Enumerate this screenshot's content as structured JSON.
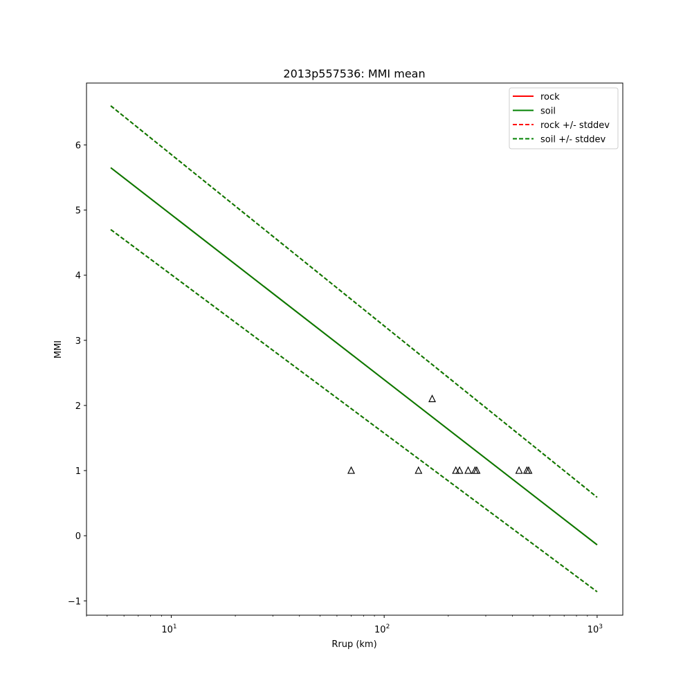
{
  "chart_data": {
    "type": "line",
    "title": "2013p557536: MMI mean",
    "xlabel": "Rrup (km)",
    "ylabel": "MMI",
    "xscale": "log",
    "xlim": [
      4.0,
      1320
    ],
    "ylim": [
      -1.22,
      6.95
    ],
    "x_ticks": [
      {
        "value": 10,
        "base": "10",
        "exp": "1"
      },
      {
        "value": 100,
        "base": "10",
        "exp": "2"
      },
      {
        "value": 1000,
        "base": "10",
        "exp": "3"
      }
    ],
    "y_ticks": [
      {
        "value": -1,
        "label": "−1"
      },
      {
        "value": 0,
        "label": "0"
      },
      {
        "value": 1,
        "label": "1"
      },
      {
        "value": 2,
        "label": "2"
      },
      {
        "value": 3,
        "label": "3"
      },
      {
        "value": 4,
        "label": "4"
      },
      {
        "value": 5,
        "label": "5"
      },
      {
        "value": 6,
        "label": "6"
      }
    ],
    "grid": false,
    "legend_position": "top-right",
    "series": [
      {
        "name": "rock",
        "color": "#ff0000",
        "dash": false,
        "x": [
          5.2,
          1000
        ],
        "y": [
          5.65,
          -0.14
        ]
      },
      {
        "name": "soil",
        "color": "#008000",
        "dash": false,
        "x": [
          5.2,
          1000
        ],
        "y": [
          5.65,
          -0.14
        ]
      },
      {
        "name": "rock +/- stddev",
        "color": "#ff0000",
        "dash": true,
        "x": [
          5.2,
          1000
        ],
        "y": [
          6.6,
          0.59
        ],
        "y_lower": [
          4.7,
          -0.86
        ]
      },
      {
        "name": "soil +/- stddev",
        "color": "#008000",
        "dash": true,
        "x": [
          5.2,
          1000
        ],
        "y": [
          6.6,
          0.59
        ],
        "y_lower": [
          4.7,
          -0.86
        ]
      }
    ],
    "observations": {
      "marker": "triangle",
      "x": [
        70,
        145,
        168,
        217,
        226,
        248,
        267,
        272,
        430,
        468,
        477
      ],
      "y": [
        1.0,
        1.0,
        2.1,
        1.0,
        1.0,
        1.0,
        1.0,
        1.0,
        1.0,
        1.0,
        1.0
      ]
    }
  }
}
